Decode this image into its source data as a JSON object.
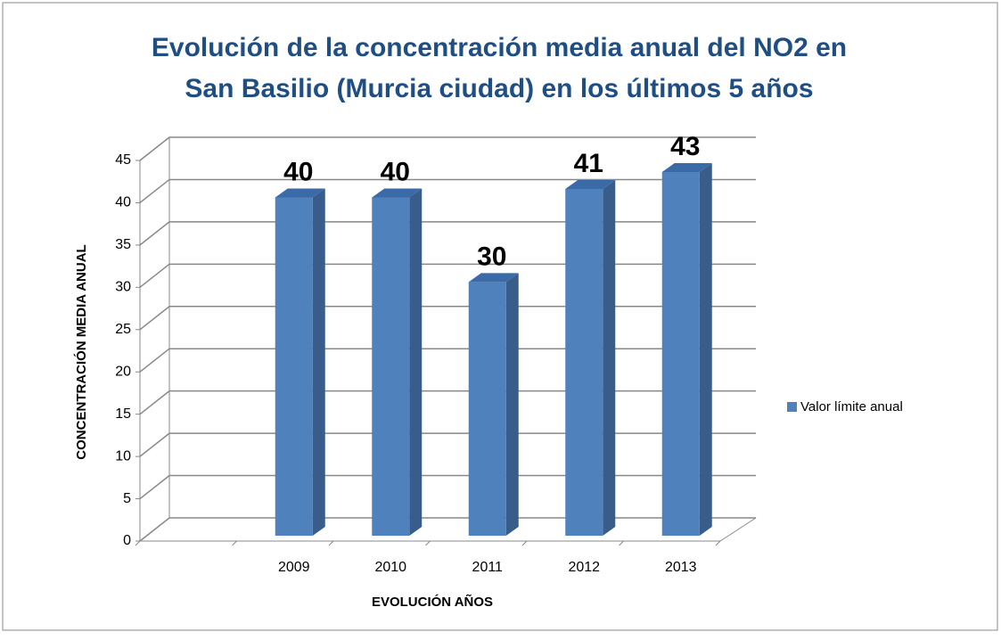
{
  "chart_data": {
    "type": "bar3d",
    "title": [
      "Evolución de la concentración media anual del NO2 en",
      "San Basilio (Murcia ciudad) en los últimos 5 años"
    ],
    "x_label": "EVOLUCIÓN AÑOS",
    "y_label": "CONCENTRACIÓN MEDIA ANUAL",
    "categories": [
      null,
      "2009",
      "2010",
      "2011",
      "2012",
      "2013"
    ],
    "series": [
      {
        "name": "Valor límite anual",
        "color": "#4f81bd",
        "values": [
          null,
          40,
          40,
          30,
          41,
          43
        ]
      }
    ],
    "ylim": [
      0,
      45
    ],
    "yticks": [
      0,
      5,
      10,
      15,
      20,
      25,
      30,
      35,
      40,
      45
    ],
    "grid": true,
    "legend": "right"
  }
}
